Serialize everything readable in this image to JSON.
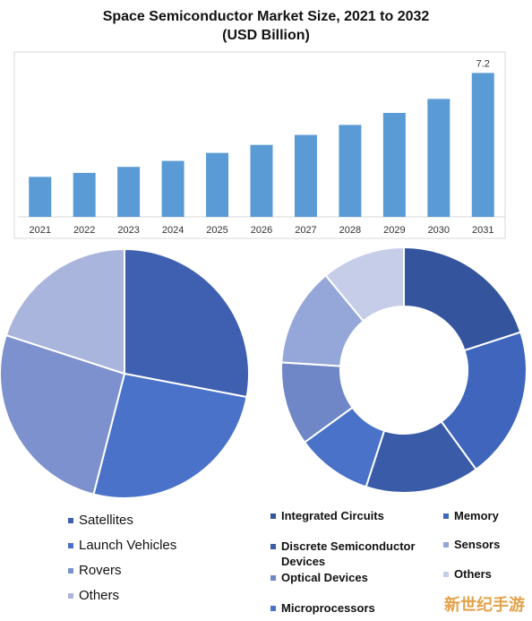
{
  "title_line1": "Space Semiconductor Market Size, 2021 to 2032",
  "title_line2": "(USD Billion)",
  "watermark_text": "新世纪手游",
  "chart_data": [
    {
      "type": "bar",
      "title": "Space Semiconductor Market Size, 2021 to 2032 (USD Billion)",
      "categories": [
        "2021",
        "2022",
        "2023",
        "2024",
        "2025",
        "2026",
        "2027",
        "2028",
        "2029",
        "2030",
        "2031"
      ],
      "values": [
        2.0,
        2.2,
        2.5,
        2.8,
        3.2,
        3.6,
        4.1,
        4.6,
        5.2,
        5.9,
        7.2
      ],
      "data_labels": {
        "2031": "7.2"
      },
      "ylim": [
        0,
        7.8
      ],
      "grid": false,
      "color": "#5b9bd5"
    },
    {
      "type": "pie",
      "labels": [
        "Satellites",
        "Launch Vehicles",
        "Rovers",
        "Others"
      ],
      "values": [
        28,
        26,
        26,
        20
      ],
      "colors": [
        "#3f5fb0",
        "#4a72c8",
        "#7c91cd",
        "#aab5dd"
      ],
      "legend": "bottom"
    },
    {
      "type": "donut",
      "labels": [
        "Integrated Circuits",
        "Memory",
        "Discrete Semiconductor Devices",
        "Sensors",
        "Optical Devices",
        "Others",
        "Microprocessors"
      ],
      "values": [
        20,
        20,
        15,
        13,
        11,
        11,
        10
      ],
      "slice_order": [
        "Integrated Circuits",
        "Memory",
        "Discrete Semiconductor Devices",
        "Microprocessors",
        "Optical Devices",
        "Sensors",
        "Others"
      ],
      "colors": {
        "Integrated Circuits": "#34549e",
        "Memory": "#3f66bc",
        "Discrete Semiconductor Devices": "#3a5ca8",
        "Microprocessors": "#4a72c8",
        "Optical Devices": "#6f86c7",
        "Sensors": "#95a6d8",
        "Others": "#c5cde9"
      },
      "legend": "bottom"
    }
  ]
}
